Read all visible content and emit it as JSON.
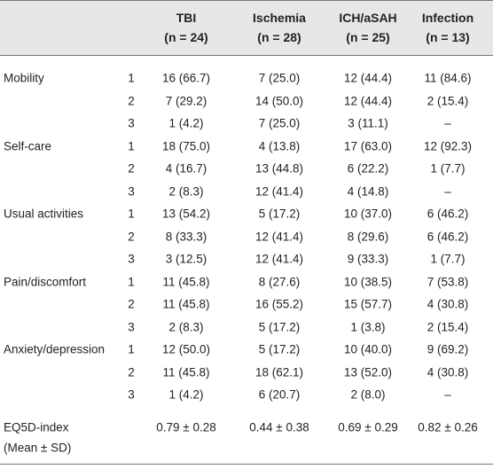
{
  "table": {
    "columns": [
      {
        "name": "TBI",
        "n": "(n = 24)"
      },
      {
        "name": "Ischemia",
        "n": "(n = 28)"
      },
      {
        "name": "ICH/aSAH",
        "n": "(n = 25)"
      },
      {
        "name": "Infection",
        "n": "(n = 13)"
      }
    ],
    "groups": [
      {
        "label": "Mobility",
        "rows": [
          {
            "level": "1",
            "cells": [
              "16 (66.7)",
              "7 (25.0)",
              "12 (44.4)",
              "11 (84.6)"
            ]
          },
          {
            "level": "2",
            "cells": [
              "7 (29.2)",
              "14 (50.0)",
              "12 (44.4)",
              "2 (15.4)"
            ]
          },
          {
            "level": "3",
            "cells": [
              "1 (4.2)",
              "7 (25.0)",
              "3 (11.1)",
              "–"
            ]
          }
        ]
      },
      {
        "label": "Self-care",
        "rows": [
          {
            "level": "1",
            "cells": [
              "18 (75.0)",
              "4 (13.8)",
              "17 (63.0)",
              "12 (92.3)"
            ]
          },
          {
            "level": "2",
            "cells": [
              "4 (16.7)",
              "13 (44.8)",
              "6 (22.2)",
              "1 (7.7)"
            ]
          },
          {
            "level": "3",
            "cells": [
              "2 (8.3)",
              "12 (41.4)",
              "4 (14.8)",
              "–"
            ]
          }
        ]
      },
      {
        "label": "Usual activities",
        "rows": [
          {
            "level": "1",
            "cells": [
              "13 (54.2)",
              "5 (17.2)",
              "10 (37.0)",
              "6 (46.2)"
            ]
          },
          {
            "level": "2",
            "cells": [
              "8 (33.3)",
              "12 (41.4)",
              "8 (29.6)",
              "6 (46.2)"
            ]
          },
          {
            "level": "3",
            "cells": [
              "3 (12.5)",
              "12 (41.4)",
              "9 (33.3)",
              "1 (7.7)"
            ]
          }
        ]
      },
      {
        "label": "Pain/discomfort",
        "rows": [
          {
            "level": "1",
            "cells": [
              "11 (45.8)",
              "8 (27.6)",
              "10 (38.5)",
              "7 (53.8)"
            ]
          },
          {
            "level": "2",
            "cells": [
              "11 (45.8)",
              "16 (55.2)",
              "15 (57.7)",
              "4 (30.8)"
            ]
          },
          {
            "level": "3",
            "cells": [
              "2 (8.3)",
              "5 (17.2)",
              "1 (3.8)",
              "2 (15.4)"
            ]
          }
        ]
      },
      {
        "label": "Anxiety/depression",
        "rows": [
          {
            "level": "1",
            "cells": [
              "12 (50.0)",
              "5 (17.2)",
              "10 (40.0)",
              "9 (69.2)"
            ]
          },
          {
            "level": "2",
            "cells": [
              "11 (45.8)",
              "18 (62.1)",
              "13 (52.0)",
              "4 (30.8)"
            ]
          },
          {
            "level": "3",
            "cells": [
              "1 (4.2)",
              "6 (20.7)",
              "2 (8.0)",
              "–"
            ]
          }
        ]
      }
    ],
    "summary": {
      "label": "EQ5D-index",
      "sub": "(Mean ± SD)",
      "cells": [
        "0.79 ± 0.28",
        "0.44 ± 0.38",
        "0.69 ± 0.29",
        "0.82 ± 0.26"
      ]
    }
  }
}
